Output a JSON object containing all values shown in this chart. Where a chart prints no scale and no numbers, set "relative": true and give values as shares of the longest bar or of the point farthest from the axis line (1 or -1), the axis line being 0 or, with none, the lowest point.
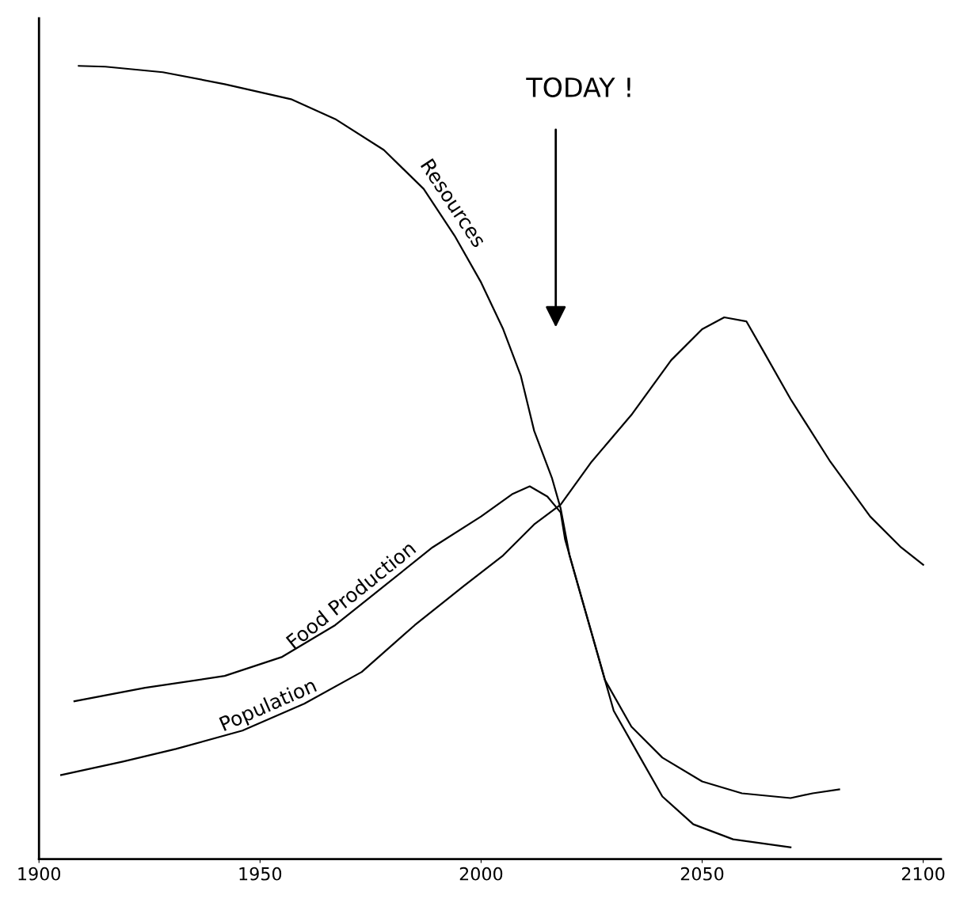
{
  "chart_data": {
    "type": "line",
    "relative": true,
    "grid": false,
    "legend": false,
    "marker": "none",
    "line_style": "solid",
    "xlim": [
      1900,
      2104
    ],
    "xticks": [
      1900,
      1950,
      2000,
      2050,
      2100
    ],
    "annotations": [
      "TODAY !"
    ],
    "series": [
      {
        "name": "Resources",
        "color": "#000000",
        "x": [
          1909,
          1915,
          1928,
          1942,
          1957,
          1967,
          1978,
          1987,
          1994,
          2000,
          2005,
          2009,
          2012,
          2016,
          2018,
          2020,
          2023,
          2027,
          2030,
          2036,
          2041,
          2048,
          2057,
          2070
        ],
        "values": [
          1.0,
          0.999,
          0.992,
          0.977,
          0.958,
          0.933,
          0.894,
          0.845,
          0.786,
          0.727,
          0.668,
          0.609,
          0.54,
          0.481,
          0.442,
          0.383,
          0.324,
          0.246,
          0.187,
          0.128,
          0.079,
          0.044,
          0.025,
          0.015
        ]
      },
      {
        "name": "Food Production",
        "color": "#000000",
        "x": [
          1908,
          1924,
          1942,
          1955,
          1967,
          1978,
          1989,
          2000,
          2007,
          2011,
          2015,
          2018,
          2019,
          2022,
          2025,
          2028,
          2034,
          2041,
          2050,
          2059,
          2070,
          2075,
          2081
        ],
        "values": [
          0.199,
          0.216,
          0.231,
          0.255,
          0.295,
          0.344,
          0.393,
          0.432,
          0.46,
          0.47,
          0.457,
          0.437,
          0.403,
          0.344,
          0.285,
          0.226,
          0.167,
          0.128,
          0.098,
          0.083,
          0.077,
          0.083,
          0.088
        ]
      },
      {
        "name": "Population",
        "color": "#000000",
        "x": [
          1905,
          1919,
          1931,
          1946,
          1960,
          1973,
          1985,
          1996,
          2005,
          2012,
          2018,
          2025,
          2034,
          2043,
          2050,
          2055,
          2060,
          2064,
          2070,
          2079,
          2088,
          2095,
          2100
        ],
        "values": [
          0.106,
          0.123,
          0.139,
          0.162,
          0.196,
          0.236,
          0.295,
          0.344,
          0.383,
          0.422,
          0.447,
          0.501,
          0.56,
          0.629,
          0.668,
          0.683,
          0.678,
          0.639,
          0.58,
          0.501,
          0.432,
          0.393,
          0.371
        ]
      }
    ]
  }
}
